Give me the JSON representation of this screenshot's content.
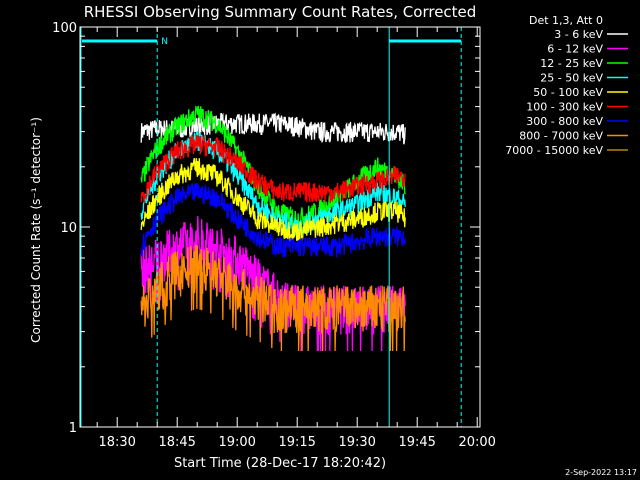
{
  "chart_data": {
    "type": "line",
    "title": "RHESSI Observing Summary Count Rates, Corrected",
    "xlabel": "Start Time (28-Dec-17 18:20:42)",
    "ylabel": "Corrected Count Rate (s⁻¹ detector⁻¹)",
    "yscale": "log",
    "ylim": [
      1,
      100
    ],
    "xlim": [
      "18:20:42",
      "20:00:42"
    ],
    "x_tick_labels": [
      "18:30",
      "18:45",
      "19:00",
      "19:15",
      "19:30",
      "19:45",
      "20:00"
    ],
    "y_tick_labels": [
      "1",
      "10",
      "100"
    ],
    "legend_title": "Det 1,3, Att 0",
    "legend_position": "top-right",
    "footer": "2-Sep-2022 13:17",
    "annotations": [
      {
        "text": "N",
        "at": "18:40"
      }
    ],
    "data_interval": [
      "18:36",
      "19:42"
    ],
    "series": [
      {
        "name": "3 - 6 keV",
        "color": "#ffffff",
        "x": [
          "18:36",
          "18:40",
          "18:45",
          "18:50",
          "18:55",
          "19:00",
          "19:05",
          "19:10",
          "19:15",
          "19:20",
          "19:25",
          "19:30",
          "19:35",
          "19:40",
          "19:42"
        ],
        "values": [
          30,
          31,
          31,
          32,
          33,
          33,
          33,
          33,
          32,
          30,
          30,
          30,
          30,
          30,
          29
        ]
      },
      {
        "name": "6 - 12 keV",
        "color": "#ff00ff",
        "x": [
          "18:36",
          "18:40",
          "18:45",
          "18:50",
          "18:55",
          "19:00",
          "19:05",
          "19:10",
          "19:15",
          "19:20",
          "19:25",
          "19:30",
          "19:35",
          "19:40",
          "19:42"
        ],
        "values": [
          6,
          7,
          8,
          9,
          8,
          7,
          5.5,
          4.5,
          4,
          4,
          4,
          4,
          4,
          4,
          4
        ]
      },
      {
        "name": "12 - 25 keV",
        "color": "#00ff00",
        "x": [
          "18:36",
          "18:40",
          "18:45",
          "18:50",
          "18:55",
          "19:00",
          "19:05",
          "19:10",
          "19:15",
          "19:20",
          "19:25",
          "19:30",
          "19:35",
          "19:40",
          "19:42"
        ],
        "values": [
          17,
          25,
          32,
          37,
          33,
          24,
          16,
          12,
          11,
          12,
          14,
          17,
          20,
          18,
          16
        ]
      },
      {
        "name": "25 - 50 keV",
        "color": "#00ffff",
        "x": [
          "18:36",
          "18:40",
          "18:45",
          "18:50",
          "18:55",
          "19:00",
          "19:05",
          "19:10",
          "19:15",
          "19:20",
          "19:25",
          "19:30",
          "19:35",
          "19:40",
          "19:42"
        ],
        "values": [
          12,
          18,
          24,
          27,
          24,
          18,
          13,
          11,
          10,
          11,
          12,
          13,
          15,
          14,
          13
        ]
      },
      {
        "name": "50 - 100 keV",
        "color": "#ffff00",
        "x": [
          "18:36",
          "18:40",
          "18:45",
          "18:50",
          "18:55",
          "19:00",
          "19:05",
          "19:10",
          "19:15",
          "19:20",
          "19:25",
          "19:30",
          "19:35",
          "19:40",
          "19:42"
        ],
        "values": [
          10,
          14,
          18,
          20,
          18,
          14,
          11,
          10,
          9.5,
          10,
          10.5,
          11,
          12,
          12,
          11
        ]
      },
      {
        "name": "100 - 300 keV",
        "color": "#ff0000",
        "x": [
          "18:36",
          "18:40",
          "18:45",
          "18:50",
          "18:55",
          "19:00",
          "19:05",
          "19:10",
          "19:15",
          "19:20",
          "19:25",
          "19:30",
          "19:35",
          "19:40",
          "19:42"
        ],
        "values": [
          14,
          19,
          24,
          26,
          25,
          21,
          17,
          15,
          15,
          15,
          15,
          16,
          17,
          18,
          18
        ]
      },
      {
        "name": "300 - 800 keV",
        "color": "#0000ff",
        "x": [
          "18:36",
          "18:40",
          "18:45",
          "18:50",
          "18:55",
          "19:00",
          "19:05",
          "19:10",
          "19:15",
          "19:20",
          "19:25",
          "19:30",
          "19:35",
          "19:40",
          "19:42"
        ],
        "values": [
          8,
          11,
          14,
          15,
          14,
          11,
          9,
          8,
          8,
          8,
          8,
          8.5,
          9,
          9,
          9
        ]
      },
      {
        "name": "800 - 7000 keV",
        "color": "#ff8c00",
        "x": [
          "18:36",
          "18:40",
          "18:45",
          "18:50",
          "18:55",
          "19:00",
          "19:05",
          "19:10",
          "19:15",
          "19:20",
          "19:25",
          "19:30",
          "19:35",
          "19:40",
          "19:42"
        ],
        "values": [
          4,
          5,
          6,
          6.5,
          6,
          5,
          4.5,
          4,
          4,
          4,
          4,
          4,
          4,
          4,
          4
        ]
      },
      {
        "name": "7000 - 15000 keV",
        "color": "#b8860b",
        "x": [],
        "values": []
      }
    ]
  }
}
